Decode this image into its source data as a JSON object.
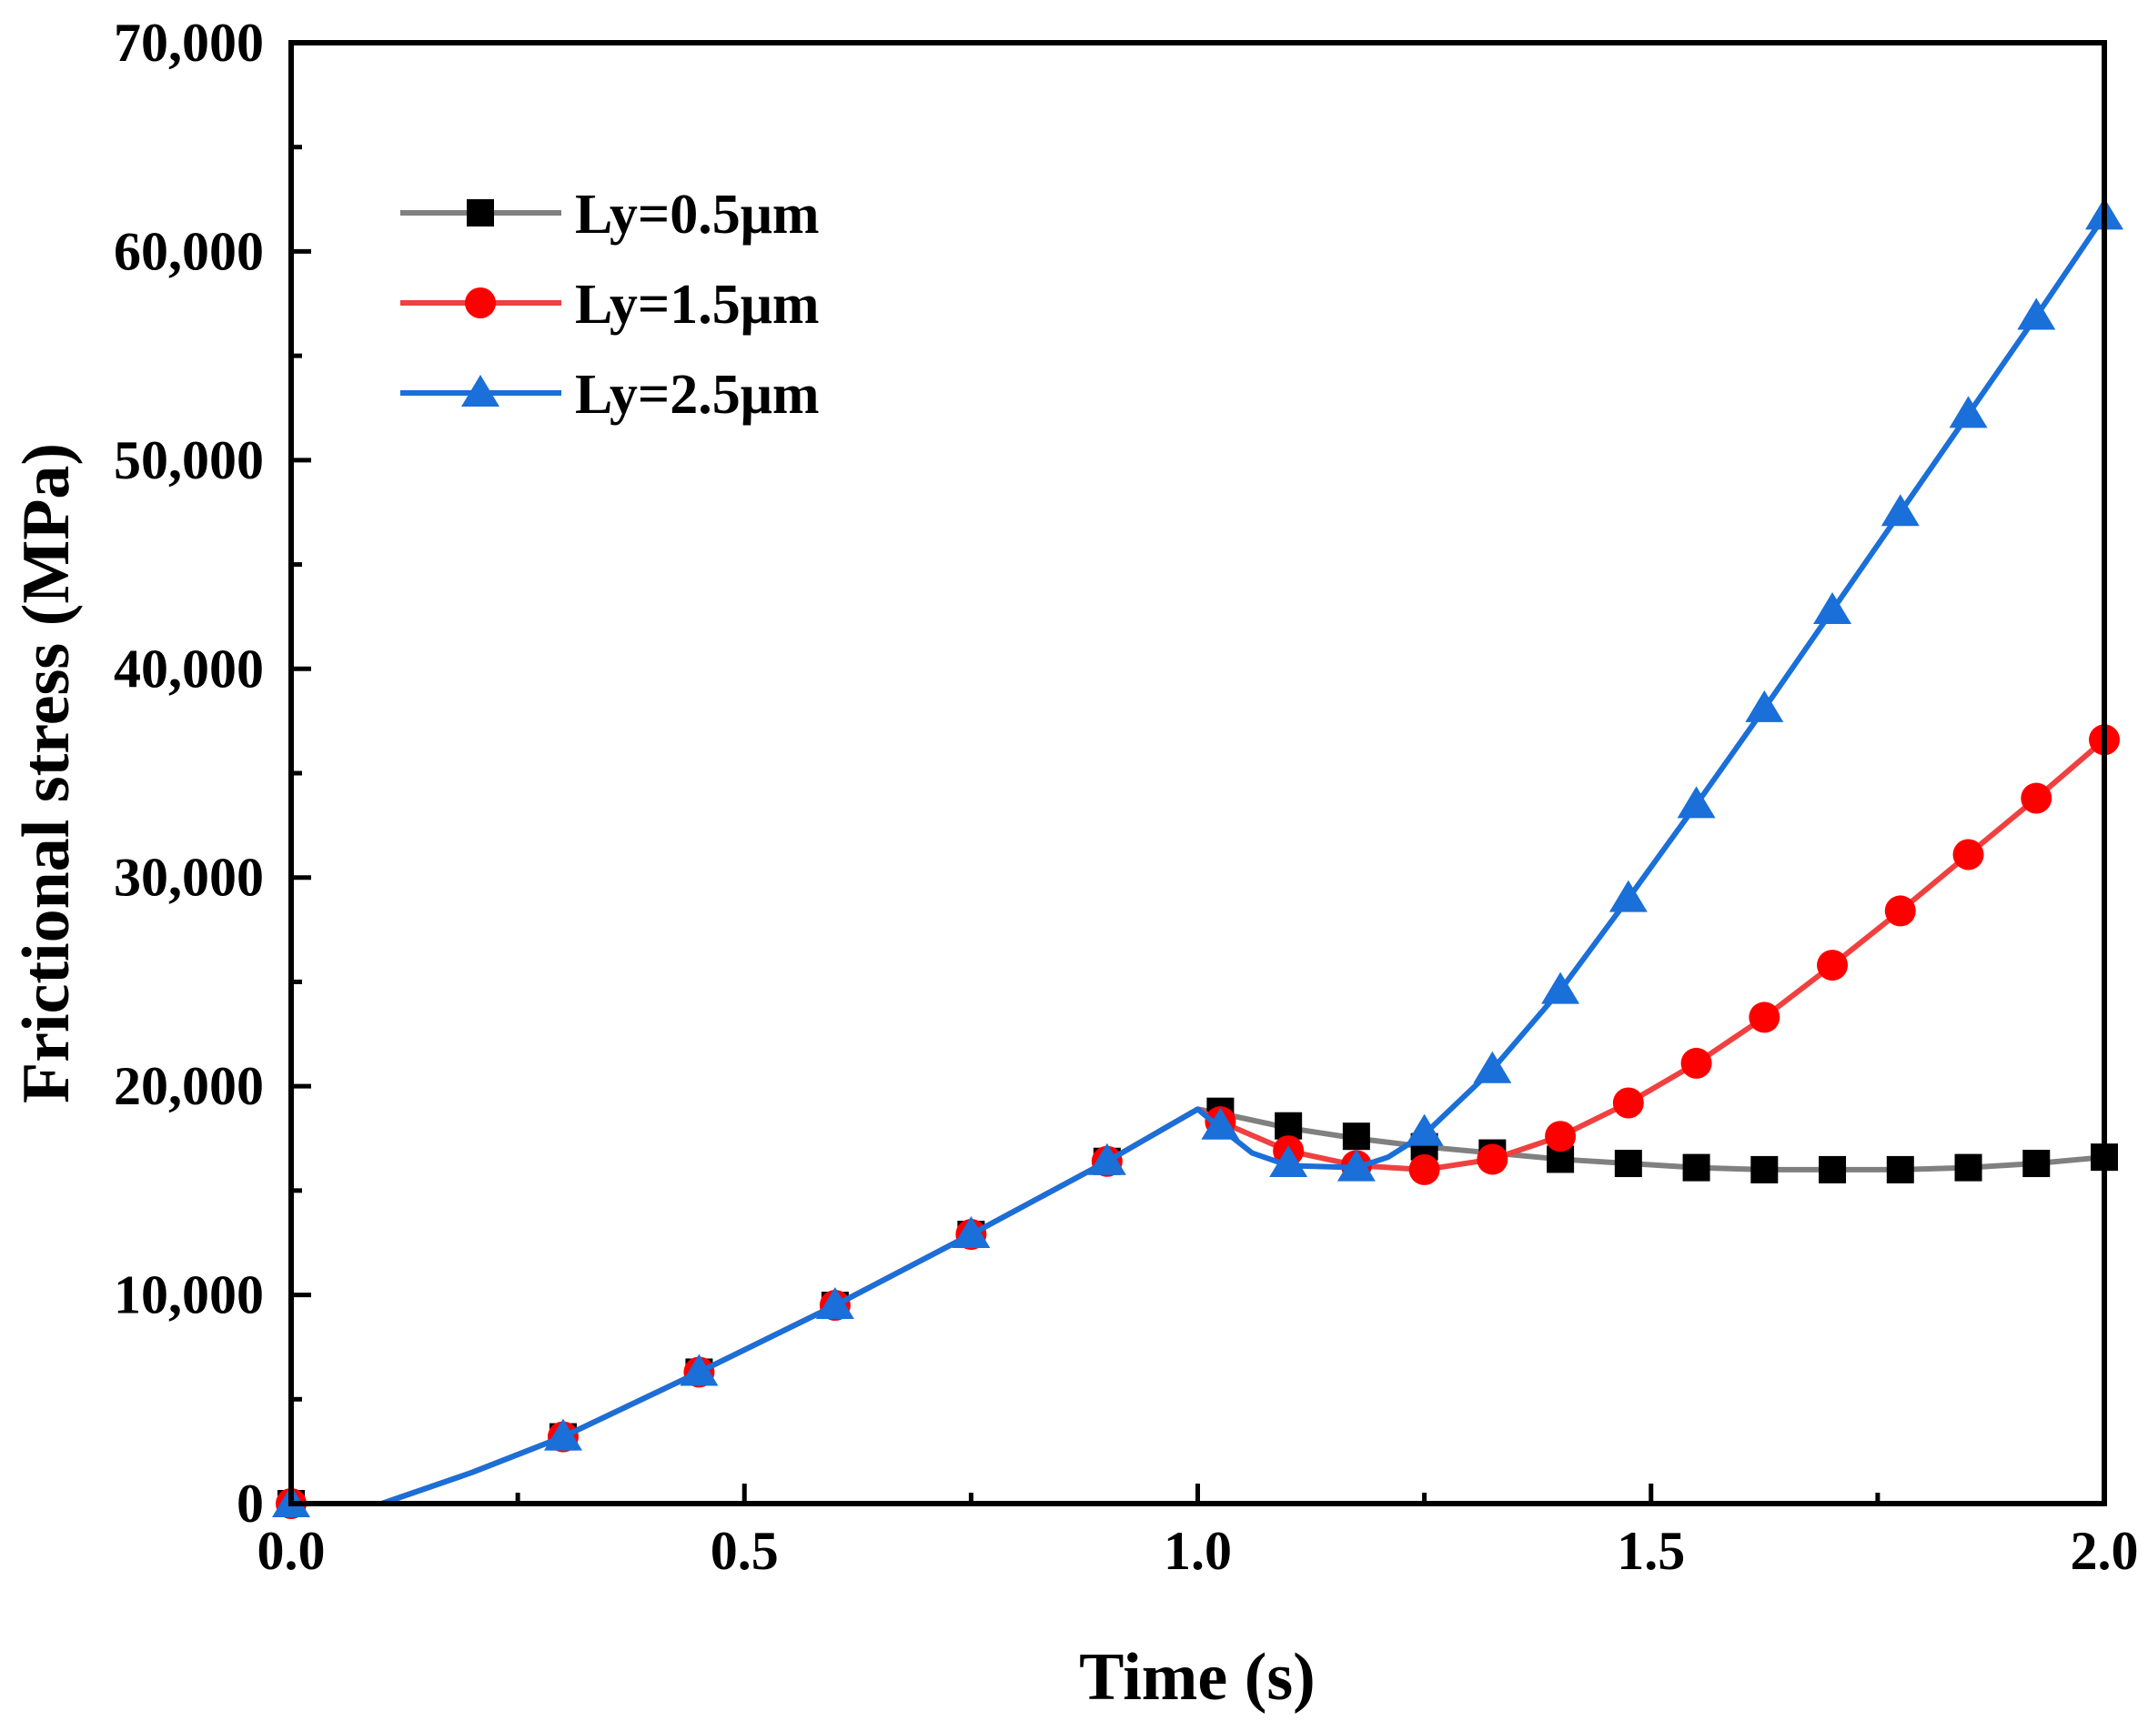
{
  "chart_data": {
    "type": "line",
    "title": "",
    "xlabel": "Time (s)",
    "ylabel": "Frictional stress (MPa)",
    "xlim": [
      0,
      2
    ],
    "ylim": [
      0,
      70000
    ],
    "xticks": [
      0,
      0.5,
      1,
      1.5,
      2
    ],
    "xtick_labels": [
      "0.0",
      "0.5",
      "1.0",
      "1.5",
      "2.0"
    ],
    "yticks": [
      0,
      10000,
      20000,
      30000,
      40000,
      50000,
      60000,
      70000
    ],
    "ytick_labels": [
      "0",
      "10,000",
      "20,000",
      "30,000",
      "40,000",
      "50,000",
      "60,000",
      "70,000"
    ],
    "grid": false,
    "legend_position": "top-left",
    "series": [
      {
        "name": "Ly=0.5μm",
        "color": "#808080",
        "marker_color": "#000000",
        "marker": "square",
        "line": [
          [
            0,
            0
          ],
          [
            0.1,
            0
          ],
          [
            0.2,
            1500
          ],
          [
            0.3,
            3200
          ],
          [
            0.45,
            6300
          ],
          [
            0.6,
            9500
          ],
          [
            0.75,
            12900
          ],
          [
            0.9,
            16400
          ],
          [
            1.0,
            18900
          ],
          [
            1.025,
            18700
          ],
          [
            1.1,
            18000
          ],
          [
            1.175,
            17500
          ],
          [
            1.25,
            17100
          ],
          [
            1.325,
            16800
          ],
          [
            1.4,
            16500
          ],
          [
            1.475,
            16300
          ],
          [
            1.55,
            16100
          ],
          [
            1.625,
            16000
          ],
          [
            1.7,
            16000
          ],
          [
            1.775,
            16000
          ],
          [
            1.85,
            16100
          ],
          [
            1.925,
            16300
          ],
          [
            2.0,
            16600
          ]
        ],
        "markers": [
          [
            0,
            0
          ],
          [
            0.3,
            3200
          ],
          [
            0.45,
            6300
          ],
          [
            0.6,
            9500
          ],
          [
            0.75,
            12900
          ],
          [
            0.9,
            16400
          ],
          [
            1.025,
            18800
          ],
          [
            1.1,
            18100
          ],
          [
            1.175,
            17600
          ],
          [
            1.25,
            17100
          ],
          [
            1.325,
            16800
          ],
          [
            1.4,
            16500
          ],
          [
            1.475,
            16300
          ],
          [
            1.55,
            16100
          ],
          [
            1.625,
            16000
          ],
          [
            1.7,
            16000
          ],
          [
            1.775,
            16000
          ],
          [
            1.85,
            16100
          ],
          [
            1.925,
            16300
          ],
          [
            2.0,
            16600
          ]
        ]
      },
      {
        "name": "Ly=1.5μm",
        "color": "#f04040",
        "marker_color": "#ff0000",
        "marker": "circle",
        "line": [
          [
            0,
            0
          ],
          [
            0.1,
            0
          ],
          [
            0.2,
            1500
          ],
          [
            0.3,
            3200
          ],
          [
            0.45,
            6300
          ],
          [
            0.6,
            9500
          ],
          [
            0.75,
            12900
          ],
          [
            0.9,
            16400
          ],
          [
            1.0,
            18900
          ],
          [
            1.025,
            18300
          ],
          [
            1.1,
            16900
          ],
          [
            1.175,
            16200
          ],
          [
            1.25,
            16000
          ],
          [
            1.325,
            16500
          ],
          [
            1.4,
            17600
          ],
          [
            1.475,
            19200
          ],
          [
            1.55,
            21100
          ],
          [
            1.625,
            23300
          ],
          [
            1.7,
            25800
          ],
          [
            1.775,
            28400
          ],
          [
            1.85,
            31100
          ],
          [
            1.925,
            33800
          ],
          [
            2.0,
            36600
          ]
        ],
        "markers": [
          [
            0,
            0
          ],
          [
            0.3,
            3200
          ],
          [
            0.45,
            6300
          ],
          [
            0.6,
            9500
          ],
          [
            0.75,
            12900
          ],
          [
            0.9,
            16400
          ],
          [
            1.025,
            18300
          ],
          [
            1.1,
            16900
          ],
          [
            1.175,
            16200
          ],
          [
            1.25,
            16000
          ],
          [
            1.325,
            16500
          ],
          [
            1.4,
            17600
          ],
          [
            1.475,
            19200
          ],
          [
            1.55,
            21100
          ],
          [
            1.625,
            23300
          ],
          [
            1.7,
            25800
          ],
          [
            1.775,
            28400
          ],
          [
            1.85,
            31100
          ],
          [
            1.925,
            33800
          ],
          [
            2.0,
            36600
          ]
        ]
      },
      {
        "name": "Ly=2.5μm",
        "color": "#1a6fd8",
        "marker_color": "#1a6fd8",
        "marker": "triangle",
        "line": [
          [
            0,
            0
          ],
          [
            0.1,
            0
          ],
          [
            0.2,
            1500
          ],
          [
            0.3,
            3200
          ],
          [
            0.45,
            6300
          ],
          [
            0.6,
            9500
          ],
          [
            0.75,
            12900
          ],
          [
            0.9,
            16400
          ],
          [
            1.0,
            18900
          ],
          [
            1.025,
            18000
          ],
          [
            1.06,
            16800
          ],
          [
            1.1,
            16200
          ],
          [
            1.175,
            16100
          ],
          [
            1.21,
            16600
          ],
          [
            1.25,
            17700
          ],
          [
            1.325,
            20800
          ],
          [
            1.4,
            24600
          ],
          [
            1.475,
            29000
          ],
          [
            1.55,
            33500
          ],
          [
            1.625,
            38100
          ],
          [
            1.7,
            42800
          ],
          [
            1.775,
            47500
          ],
          [
            1.85,
            52200
          ],
          [
            1.925,
            56900
          ],
          [
            2.0,
            61700
          ]
        ],
        "markers": [
          [
            0,
            0
          ],
          [
            0.3,
            3200
          ],
          [
            0.45,
            6300
          ],
          [
            0.6,
            9500
          ],
          [
            0.75,
            12900
          ],
          [
            0.9,
            16400
          ],
          [
            1.025,
            18100
          ],
          [
            1.1,
            16300
          ],
          [
            1.175,
            16100
          ],
          [
            1.25,
            17800
          ],
          [
            1.325,
            20800
          ],
          [
            1.4,
            24600
          ],
          [
            1.475,
            29000
          ],
          [
            1.55,
            33500
          ],
          [
            1.625,
            38100
          ],
          [
            1.7,
            42800
          ],
          [
            1.775,
            47500
          ],
          [
            1.85,
            52200
          ],
          [
            1.925,
            56900
          ],
          [
            2.0,
            61700
          ]
        ]
      }
    ]
  }
}
